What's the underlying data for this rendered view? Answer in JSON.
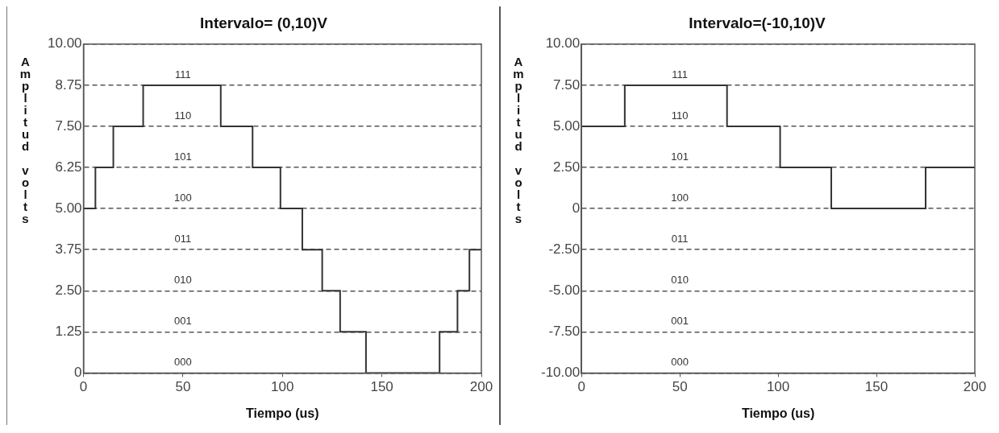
{
  "chart_data": [
    {
      "type": "step",
      "title": "Intervalo= (0,10)V",
      "xlabel": "Tiempo (us)",
      "ylabel": "Amplitud volts",
      "color": "#333333",
      "x": [
        0,
        6,
        15,
        30,
        69,
        85,
        99,
        110,
        120,
        129,
        142,
        179,
        188,
        194,
        200
      ],
      "values": [
        5,
        6.25,
        7.5,
        8.75,
        7.5,
        6.25,
        5,
        3.75,
        2.5,
        1.25,
        0,
        1.25,
        2.5,
        3.75,
        3.75
      ],
      "xlim": [
        0,
        200
      ],
      "xticks": [
        0,
        50,
        100,
        150,
        200
      ],
      "ylim": [
        0,
        10
      ],
      "yticks": [
        0,
        {
          "value": 1.25,
          "label": "1.25"
        },
        {
          "value": 2.5,
          "label": "2.50"
        },
        {
          "value": 3.75,
          "label": "3.75"
        },
        {
          "value": 5,
          "label": "5.00"
        },
        {
          "value": 6.25,
          "label": "6.25"
        },
        {
          "value": 7.5,
          "label": "7.50"
        },
        {
          "value": 8.75,
          "label": "8.75"
        },
        {
          "value": 10,
          "label": "10.00"
        }
      ],
      "grid": "y",
      "annotations": [
        "111",
        "110",
        "101",
        "100",
        "011",
        "010",
        "001",
        "000"
      ]
    },
    {
      "type": "step",
      "title": "Intervalo=(-10,10)V",
      "xlabel": "Tiempo (us)",
      "ylabel": "Amplitud volts",
      "color": "#333333",
      "x": [
        0,
        22,
        74,
        101,
        127,
        175,
        200
      ],
      "values": [
        5,
        7.5,
        5,
        2.5,
        0,
        2.5,
        2.5
      ],
      "xlim": [
        0,
        200
      ],
      "xticks": [
        0,
        50,
        100,
        150,
        200
      ],
      "ylim": [
        -10,
        10
      ],
      "yticks": [
        {
          "value": -10,
          "label": "-10.00"
        },
        {
          "value": -7.5,
          "label": "-7.50"
        },
        {
          "value": -5,
          "label": "-5.00"
        },
        {
          "value": -2.5,
          "label": "-2.50"
        },
        0,
        {
          "value": 2.5,
          "label": "2.50"
        },
        {
          "value": 5,
          "label": "5.00"
        },
        {
          "value": 7.5,
          "label": "7.50"
        },
        {
          "value": 10,
          "label": "10.00"
        }
      ],
      "grid": "y",
      "annotations": [
        "111",
        "110",
        "101",
        "100",
        "011",
        "010",
        "001",
        "000"
      ]
    }
  ]
}
